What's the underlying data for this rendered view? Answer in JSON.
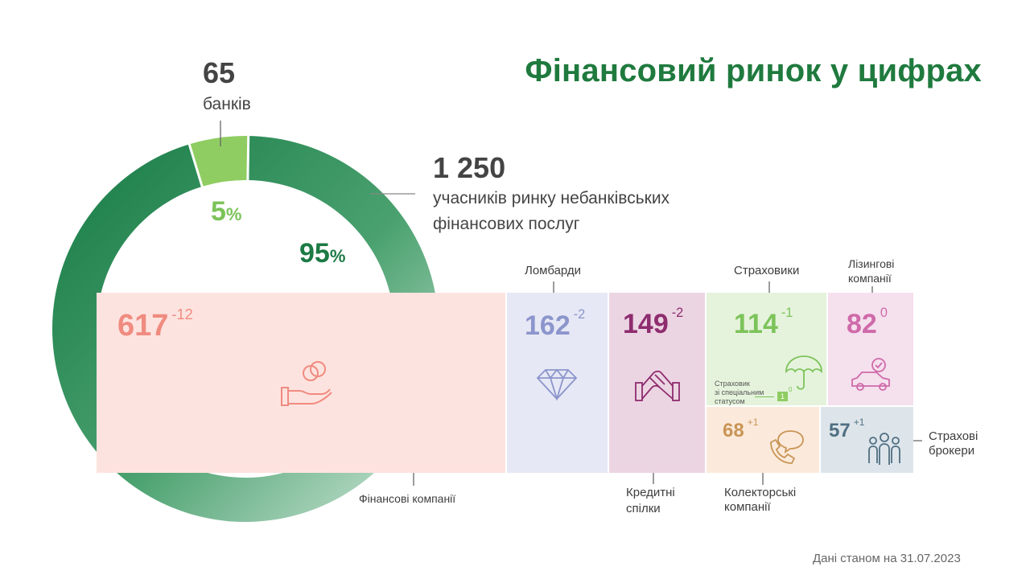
{
  "title": "Фінансовий ринок у цифрах",
  "banks": {
    "value": "65",
    "label": "банків",
    "percent": "5",
    "percent_sign": "%"
  },
  "nonbank": {
    "value": "1 250",
    "label_line1": "учасників ринку небанківських",
    "label_line2": "фінансових послуг",
    "percent": "95",
    "percent_sign": "%"
  },
  "tiles": {
    "finance": {
      "value": "617",
      "change": "-12",
      "label": "Фінансові компанії",
      "color": "#f08b80",
      "bg": "#fde3df",
      "icon": "hand-coins-icon"
    },
    "pawnshops": {
      "value": "162",
      "change": "-2",
      "label": "Ломбарди",
      "color": "#8c95cc",
      "bg": "#e6e8f5",
      "icon": "diamond-icon"
    },
    "credit_unions": {
      "value": "149",
      "change": "-2",
      "label_line1": "Кредитні",
      "label_line2": "спілки",
      "color": "#8e2c6e",
      "bg": "#ecd5e3",
      "icon": "handshake-icon"
    },
    "insurers": {
      "value": "114",
      "change": "-1",
      "label": "Страховики",
      "color": "#7cc35a",
      "bg": "#e5f3dc",
      "icon": "umbrella-icon",
      "special_line1": "Страховик",
      "special_line2": "зі спеціальним",
      "special_line3": "статусом",
      "special_value": "1",
      "special_change": "0"
    },
    "leasing": {
      "value": "82",
      "change": "0",
      "label_line1": "Лізингові",
      "label_line2": "компанії",
      "color": "#cf6aa9",
      "bg": "#f5e0ee",
      "icon": "car-check-icon"
    },
    "collectors": {
      "value": "68",
      "change": "+1",
      "label_line1": "Колекторські",
      "label_line2": "компанії",
      "color": "#c99556",
      "bg": "#fbeadb",
      "icon": "phone-chat-icon"
    },
    "brokers": {
      "value": "57",
      "change": "+1",
      "label_line1": "Страхові",
      "label_line2": "брокери",
      "color": "#4f6f82",
      "bg": "#dde5ea",
      "icon": "people-icon"
    }
  },
  "footer": "Дані станом на 31.07.2023",
  "chart_data": {
    "type": "pie",
    "categories": [
      "банків",
      "учасників ринку небанківських фінансових послуг"
    ],
    "values": [
      65,
      1250
    ],
    "percentages": [
      5,
      95
    ],
    "colors": [
      "#8fcd62",
      "#1e8a4e"
    ],
    "breakdown": {
      "type": "treemap",
      "categories": [
        "Фінансові компанії",
        "Ломбарди",
        "Кредитні спілки",
        "Страховики",
        "Лізингові компанії",
        "Колекторські компанії",
        "Страхові брокери"
      ],
      "values": [
        617,
        162,
        149,
        114,
        82,
        68,
        57
      ],
      "changes": [
        -12,
        -2,
        -2,
        -1,
        0,
        1,
        1
      ]
    }
  }
}
